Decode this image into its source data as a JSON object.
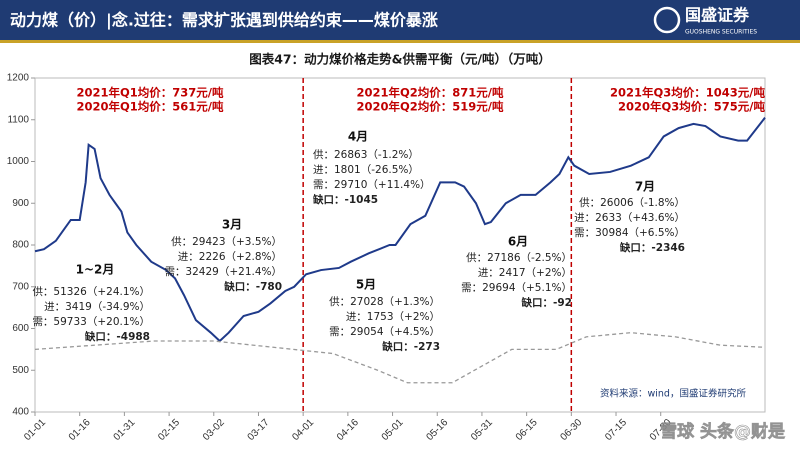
{
  "header": {
    "title": "动力煤（价）|念.过往：需求扩张遇到供给约束——煤价暴涨",
    "logo": "国盛证券",
    "logo_sub": "GUOSHENG SECURITIES"
  },
  "chart_data": {
    "type": "line",
    "title": "图表47：动力煤价格走势&供需平衡（元/吨）（万吨）",
    "xlim": [
      0,
      245
    ],
    "xticks": [
      {
        "value": 0,
        "label": "01-01"
      },
      {
        "value": 15,
        "label": "01-16"
      },
      {
        "value": 30,
        "label": "01-31"
      },
      {
        "value": 45,
        "label": "02-15"
      },
      {
        "value": 60,
        "label": "03-02"
      },
      {
        "value": 75,
        "label": "03-17"
      },
      {
        "value": 90,
        "label": "04-01"
      },
      {
        "value": 105,
        "label": "04-16"
      },
      {
        "value": 120,
        "label": "05-01"
      },
      {
        "value": 135,
        "label": "05-16"
      },
      {
        "value": 150,
        "label": "05-31"
      },
      {
        "value": 165,
        "label": "06-15"
      },
      {
        "value": 180,
        "label": "06-30"
      },
      {
        "value": 195,
        "label": "07-15"
      },
      {
        "value": 210,
        "label": "07-30"
      }
    ],
    "ylim": [
      400,
      1200
    ],
    "yticks": [
      400,
      500,
      600,
      700,
      800,
      900,
      1000,
      1100,
      1200
    ],
    "quarter_dividers": [
      90,
      180
    ],
    "series": [
      {
        "name": "2021",
        "color": "#1f3a8a",
        "dash": false,
        "x": [
          0,
          3,
          7,
          9,
          12,
          15,
          17,
          18,
          20,
          22,
          25,
          27,
          29,
          31,
          34,
          39,
          44,
          47,
          50,
          54,
          59,
          62,
          65,
          70,
          75,
          79,
          84,
          87,
          91,
          96,
          102,
          106,
          112,
          119,
          121,
          126,
          131,
          136,
          141,
          144,
          148,
          151,
          153,
          158,
          163,
          168,
          173,
          176,
          179,
          181,
          186,
          193,
          200,
          206,
          211,
          216,
          221,
          225,
          230,
          236,
          239,
          245
        ],
        "values": [
          785,
          790,
          810,
          830,
          860,
          860,
          950,
          1040,
          1030,
          960,
          920,
          900,
          880,
          830,
          800,
          760,
          740,
          720,
          680,
          620,
          590,
          570,
          590,
          630,
          640,
          660,
          690,
          700,
          730,
          740,
          745,
          760,
          780,
          800,
          800,
          850,
          870,
          950,
          950,
          940,
          900,
          850,
          855,
          900,
          920,
          920,
          950,
          970,
          1010,
          990,
          970,
          975,
          990,
          1010,
          1060,
          1080,
          1090,
          1085,
          1060,
          1050,
          1050,
          1105
        ]
      },
      {
        "name": "2020",
        "color": "#999999",
        "dash": true,
        "x": [
          0,
          20,
          40,
          60,
          80,
          100,
          115,
          125,
          140,
          150,
          160,
          175,
          185,
          200,
          215,
          230,
          245
        ],
        "values": [
          550,
          560,
          570,
          570,
          555,
          540,
          500,
          470,
          470,
          510,
          550,
          550,
          580,
          590,
          580,
          560,
          555
        ]
      }
    ],
    "quarter_notes": [
      {
        "lines": [
          "2021年Q1均价：737元/吨",
          "2020年Q1均价：561元/吨"
        ]
      },
      {
        "lines": [
          "2021年Q2均价：871元/吨",
          "2020年Q2均价：519元/吨"
        ]
      },
      {
        "lines": [
          "2021年Q3均价：1043元/吨",
          "2020年Q3均价：575元/吨"
        ]
      }
    ],
    "month_notes": [
      {
        "title": "1~2月",
        "lines": [
          "供：51326（+24.1%）",
          "进：3419（-34.9%）",
          "需：59733（+20.1%）",
          "缺口：-4988"
        ]
      },
      {
        "title": "3月",
        "lines": [
          "供：29423（+3.5%）",
          "进：2226（+2.8%）",
          "需：32429（+21.4%）",
          "缺口：-780"
        ]
      },
      {
        "title": "4月",
        "lines": [
          "供：26863（-1.2%）",
          "进：1801（-26.5%）",
          "需：29710（+11.4%）",
          "缺口：-1045"
        ]
      },
      {
        "title": "5月",
        "lines": [
          "供：27028（+1.3%）",
          "进：1753（+2%）",
          "需：29054（+4.5%）",
          "缺口：-273"
        ]
      },
      {
        "title": "6月",
        "lines": [
          "供：27186（-2.5%）",
          "进：2417（+2%）",
          "需：29694（+5.1%）",
          "缺口：-92"
        ]
      },
      {
        "title": "7月",
        "lines": [
          "供：26006（-1.8%）",
          "进：2633（+43.6%）",
          "需：30984（+6.5%）",
          "缺口：-2346"
        ]
      }
    ],
    "source": "资料来源：wind，国盛证券研究所",
    "watermark": "雪球 头条@财是"
  }
}
